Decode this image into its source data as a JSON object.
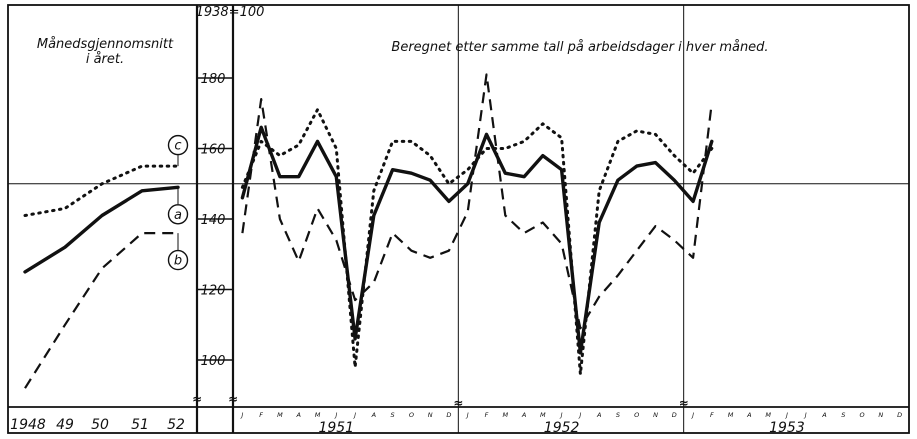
{
  "chart_data": [
    {
      "type": "line",
      "title": "Månedsgjennomsnitt i året.",
      "title_lines": [
        "Månedsgjennomsnitt",
        "i året."
      ],
      "categories": [
        "1948",
        "49",
        "50",
        "51",
        "52"
      ],
      "series": [
        {
          "name": "c",
          "values": [
            141,
            143,
            150,
            155,
            155
          ],
          "style": "dotted"
        },
        {
          "name": "a",
          "values": [
            125,
            132,
            141,
            148,
            149
          ],
          "style": "solid"
        },
        {
          "name": "b",
          "values": [
            92,
            110,
            126,
            136,
            136
          ],
          "style": "dashed"
        }
      ]
    },
    {
      "type": "line",
      "title": "Beregnet etter samme tall på arbeidsdager i hver måned.",
      "ylabel": "1938=100",
      "yticks": [
        100,
        120,
        140,
        160,
        180
      ],
      "ylim": [
        92,
        195
      ],
      "reference_line": 150,
      "month_labels": [
        "J",
        "F",
        "M",
        "A",
        "M",
        "J",
        "J",
        "A",
        "S",
        "O",
        "N",
        "D"
      ],
      "year_labels": [
        "1951",
        "1952",
        "1953"
      ],
      "series": [
        {
          "name": "a",
          "style": "solid",
          "values": [
            146,
            166,
            152,
            152,
            162,
            152,
            106,
            141,
            154,
            153,
            151,
            145,
            150,
            164,
            153,
            152,
            158,
            154,
            102,
            139,
            151,
            155,
            156,
            151,
            145,
            162
          ]
        },
        {
          "name": "b",
          "style": "dashed",
          "values": [
            136,
            174,
            140,
            128,
            143,
            134,
            117,
            122,
            136,
            131,
            129,
            131,
            142,
            181,
            141,
            136,
            139,
            133,
            109,
            118,
            124,
            131,
            138,
            134,
            129,
            173
          ]
        },
        {
          "name": "c",
          "style": "dotted",
          "values": [
            149,
            162,
            158,
            161,
            171,
            160,
            98,
            148,
            162,
            162,
            158,
            150,
            154,
            160,
            160,
            162,
            167,
            163,
            96,
            148,
            162,
            165,
            164,
            158,
            153,
            160
          ]
        }
      ]
    }
  ],
  "footer": {
    "break_mark": "≈"
  }
}
